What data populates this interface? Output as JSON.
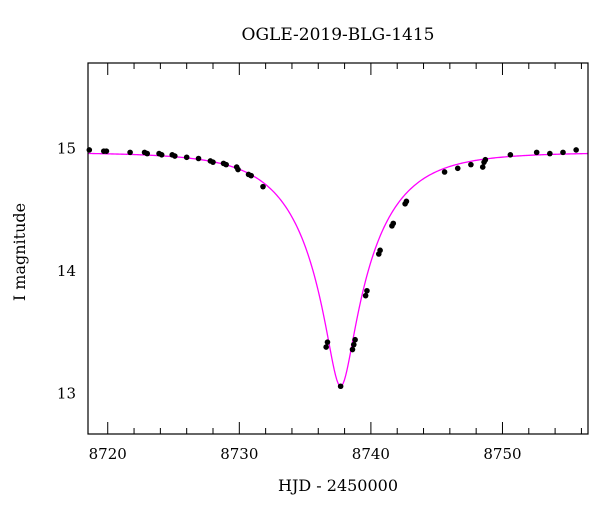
{
  "chart_data": {
    "type": "scatter",
    "title": "OGLE-2019-BLG-1415",
    "xlabel": "HJD - 2450000",
    "ylabel": "I magnitude",
    "xlim": [
      8718.5,
      8756.5
    ],
    "ylim": [
      15.7,
      12.67
    ],
    "y_inverted": true,
    "xticks": [
      8720,
      8730,
      8740,
      8750
    ],
    "xtick_labels": [
      "8720",
      "8730",
      "8740",
      "8750"
    ],
    "yticks": [
      13,
      14,
      15
    ],
    "ytick_labels": [
      "13",
      "14",
      "15"
    ],
    "grid": false,
    "colors": {
      "points": "#000000",
      "model": "#ff00ff",
      "axes": "#000000"
    },
    "model": {
      "name": "",
      "t0": 8737.7,
      "baseline_mag": 14.97,
      "peak_mag": 13.06
    },
    "series": [
      {
        "name": "",
        "x": [
          8718.6,
          8719.7,
          8719.9,
          8721.7,
          8722.8,
          8723.0,
          8723.9,
          8724.1,
          8724.9,
          8725.1,
          8726.0,
          8726.9,
          8727.8,
          8728.0,
          8728.8,
          8729.0,
          8729.8,
          8729.9,
          8730.7,
          8730.9,
          8731.8,
          8736.6,
          8736.7,
          8737.7,
          8738.6,
          8738.7,
          8738.8,
          8739.6,
          8739.7,
          8740.6,
          8740.7,
          8741.6,
          8741.7,
          8742.6,
          8742.7,
          8745.6,
          8746.6,
          8747.6,
          8748.5,
          8748.6,
          8748.7,
          8750.6,
          8752.6,
          8753.6,
          8754.6,
          8755.6
        ],
        "y": [
          14.99,
          14.98,
          14.98,
          14.97,
          14.97,
          14.96,
          14.96,
          14.95,
          14.95,
          14.94,
          14.93,
          14.92,
          14.9,
          14.89,
          14.88,
          14.87,
          14.85,
          14.83,
          14.79,
          14.78,
          14.69,
          13.38,
          13.42,
          13.06,
          13.36,
          13.4,
          13.44,
          13.8,
          13.84,
          14.14,
          14.17,
          14.37,
          14.39,
          14.55,
          14.57,
          14.81,
          14.84,
          14.87,
          14.85,
          14.89,
          14.91,
          14.95,
          14.97,
          14.96,
          14.97,
          14.99
        ]
      }
    ]
  }
}
